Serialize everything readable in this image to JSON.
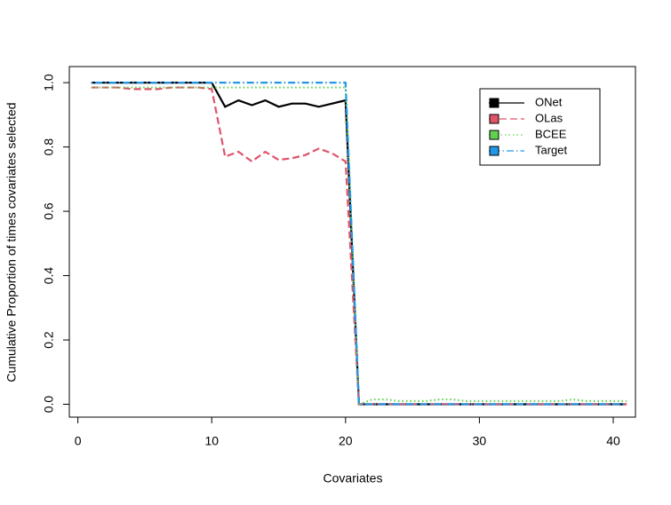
{
  "chart_data": {
    "type": "line",
    "xlabel": "Covariates",
    "ylabel": "Cumulative Proportion of times covariates selected",
    "x": [
      1,
      2,
      3,
      4,
      5,
      6,
      7,
      8,
      9,
      10,
      11,
      12,
      13,
      14,
      15,
      16,
      17,
      18,
      19,
      20,
      21,
      22,
      23,
      24,
      25,
      26,
      27,
      28,
      29,
      30,
      31,
      32,
      33,
      34,
      35,
      36,
      37,
      38,
      39,
      40,
      41
    ],
    "series": [
      {
        "name": "ONet",
        "color": "#000000",
        "dash": "solid",
        "values": [
          1,
          1,
          1,
          1,
          1,
          1,
          1,
          1,
          1,
          1,
          0.925,
          0.945,
          0.93,
          0.945,
          0.925,
          0.935,
          0.935,
          0.925,
          0.935,
          0.945,
          0,
          0,
          0,
          0,
          0,
          0,
          0,
          0,
          0,
          0,
          0,
          0,
          0,
          0,
          0,
          0,
          0,
          0,
          0,
          0,
          0
        ]
      },
      {
        "name": "OLas",
        "color": "#DF536B",
        "dash": "dashed",
        "values": [
          0.985,
          0.985,
          0.985,
          0.98,
          0.98,
          0.98,
          0.985,
          0.985,
          0.985,
          0.98,
          0.77,
          0.785,
          0.755,
          0.785,
          0.76,
          0.765,
          0.775,
          0.795,
          0.78,
          0.755,
          0,
          0,
          0,
          0,
          0,
          0,
          0,
          0,
          0,
          0,
          0,
          0,
          0,
          0,
          0,
          0,
          0,
          0,
          0,
          0,
          0
        ]
      },
      {
        "name": "BCEE",
        "color": "#61D04F",
        "dash": "dotted",
        "values": [
          0.985,
          0.985,
          0.985,
          0.985,
          0.985,
          0.985,
          0.985,
          0.985,
          0.985,
          0.985,
          0.985,
          0.985,
          0.985,
          0.985,
          0.985,
          0.985,
          0.985,
          0.985,
          0.985,
          0.985,
          0,
          0.015,
          0.015,
          0.01,
          0.01,
          0.01,
          0.015,
          0.015,
          0.01,
          0.01,
          0.01,
          0.01,
          0.01,
          0.01,
          0.01,
          0.01,
          0.015,
          0.01,
          0.01,
          0.01,
          0.01
        ]
      },
      {
        "name": "Target",
        "color": "#2297E6",
        "dash": "dotdash",
        "values": [
          1,
          1,
          1,
          1,
          1,
          1,
          1,
          1,
          1,
          1,
          1,
          1,
          1,
          1,
          1,
          1,
          1,
          1,
          1,
          1,
          0,
          0,
          0,
          0,
          0,
          0,
          0,
          0,
          0,
          0,
          0,
          0,
          0,
          0,
          0,
          0,
          0,
          0,
          0,
          0,
          0
        ]
      }
    ],
    "xlim": [
      -0.64,
      41.66
    ],
    "xticks": [
      0,
      10,
      20,
      30,
      40
    ],
    "ylim": [
      -0.04,
      1.05
    ],
    "yticks": [
      {
        "value": 0,
        "label": "0.0"
      },
      0.2,
      0.4,
      0.6,
      0.8,
      {
        "value": 1,
        "label": "1.0"
      }
    ],
    "legend": "top-right"
  }
}
